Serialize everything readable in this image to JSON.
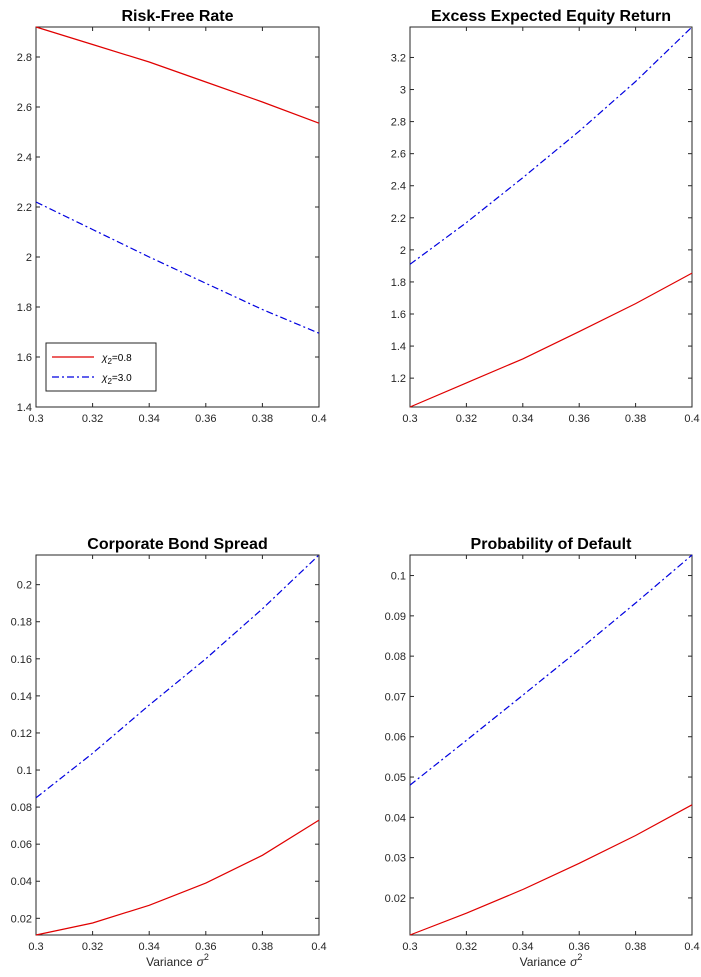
{
  "chart_data": [
    {
      "type": "line",
      "title": "Risk-Free Rate",
      "xlabel": "",
      "ylabel": "",
      "xlim": [
        0.3,
        0.4
      ],
      "ylim": [
        1.4,
        2.92
      ],
      "xticks": [
        0.3,
        0.32,
        0.34,
        0.36,
        0.38,
        0.4
      ],
      "xtick_labels": [
        "0.3",
        "0.32",
        "0.34",
        "0.36",
        "0.38",
        "0.4"
      ],
      "yticks": [
        1.4,
        1.6,
        1.8,
        2.0,
        2.2,
        2.4,
        2.6,
        2.8
      ],
      "ytick_labels": [
        "1.4",
        "1.6",
        "1.8",
        "2",
        "2.2",
        "2.4",
        "2.6",
        "2.8"
      ],
      "legend": {
        "placement": "bottom-left",
        "entries": [
          {
            "label_main": "χ",
            "label_sub": "2",
            "label_tail": "=0.8",
            "color": "#e00000",
            "dash": "solid"
          },
          {
            "label_main": "χ",
            "label_sub": "2",
            "label_tail": "=3.0",
            "color": "#0000e0",
            "dash": "dashdot"
          }
        ]
      },
      "x": [
        0.3,
        0.32,
        0.34,
        0.36,
        0.38,
        0.4
      ],
      "series": [
        {
          "color": "#e00000",
          "dash": "solid",
          "values": [
            2.92,
            2.85,
            2.78,
            2.7,
            2.62,
            2.535
          ]
        },
        {
          "color": "#0000e0",
          "dash": "dashdot",
          "values": [
            2.22,
            2.11,
            2.0,
            1.895,
            1.79,
            1.695
          ]
        }
      ]
    },
    {
      "type": "line",
      "title": "Excess Expected Equity Return",
      "xlabel": "",
      "ylabel": "",
      "xlim": [
        0.3,
        0.4
      ],
      "ylim": [
        1.02,
        3.39
      ],
      "xticks": [
        0.3,
        0.32,
        0.34,
        0.36,
        0.38,
        0.4
      ],
      "xtick_labels": [
        "0.3",
        "0.32",
        "0.34",
        "0.36",
        "0.38",
        "0.4"
      ],
      "yticks": [
        1.2,
        1.4,
        1.6,
        1.8,
        2.0,
        2.2,
        2.4,
        2.6,
        2.8,
        3.0,
        3.2
      ],
      "ytick_labels": [
        "1.2",
        "1.4",
        "1.6",
        "1.8",
        "2",
        "2.2",
        "2.4",
        "2.6",
        "2.8",
        "3",
        "3.2"
      ],
      "x": [
        0.3,
        0.32,
        0.34,
        0.36,
        0.38,
        0.4
      ],
      "series": [
        {
          "color": "#e00000",
          "dash": "solid",
          "values": [
            1.02,
            1.17,
            1.32,
            1.49,
            1.665,
            1.855
          ]
        },
        {
          "color": "#0000e0",
          "dash": "dashdot",
          "values": [
            1.91,
            2.17,
            2.45,
            2.74,
            3.05,
            3.39
          ]
        }
      ]
    },
    {
      "type": "line",
      "title": "Corporate Bond Spread",
      "xlabel": "Variance",
      "xlabel_symbol": "σ",
      "xlabel_sup": "2",
      "ylabel": "",
      "xlim": [
        0.3,
        0.4
      ],
      "ylim": [
        0.011,
        0.216
      ],
      "xticks": [
        0.3,
        0.32,
        0.34,
        0.36,
        0.38,
        0.4
      ],
      "xtick_labels": [
        "0.3",
        "0.32",
        "0.34",
        "0.36",
        "0.38",
        "0.4"
      ],
      "yticks": [
        0.02,
        0.04,
        0.06,
        0.08,
        0.1,
        0.12,
        0.14,
        0.16,
        0.18,
        0.2
      ],
      "ytick_labels": [
        "0.02",
        "0.04",
        "0.06",
        "0.08",
        "0.1",
        "0.12",
        "0.14",
        "0.16",
        "0.18",
        "0.2"
      ],
      "x": [
        0.3,
        0.32,
        0.34,
        0.36,
        0.38,
        0.4
      ],
      "series": [
        {
          "color": "#e00000",
          "dash": "solid",
          "values": [
            0.011,
            0.0175,
            0.027,
            0.039,
            0.054,
            0.073
          ]
        },
        {
          "color": "#0000e0",
          "dash": "dashdot",
          "values": [
            0.085,
            0.109,
            0.135,
            0.16,
            0.187,
            0.216
          ]
        }
      ]
    },
    {
      "type": "line",
      "title": "Probability of Default",
      "xlabel": "Variance",
      "xlabel_symbol": "σ",
      "xlabel_sup": "2",
      "ylabel": "",
      "xlim": [
        0.3,
        0.4
      ],
      "ylim": [
        0.0108,
        0.1051
      ],
      "xticks": [
        0.3,
        0.32,
        0.34,
        0.36,
        0.38,
        0.4
      ],
      "xtick_labels": [
        "0.3",
        "0.32",
        "0.34",
        "0.36",
        "0.38",
        "0.4"
      ],
      "yticks": [
        0.02,
        0.03,
        0.04,
        0.05,
        0.06,
        0.07,
        0.08,
        0.09,
        0.1
      ],
      "ytick_labels": [
        "0.02",
        "0.03",
        "0.04",
        "0.05",
        "0.06",
        "0.07",
        "0.08",
        "0.09",
        "0.1"
      ],
      "x": [
        0.3,
        0.32,
        0.34,
        0.36,
        0.38,
        0.4
      ],
      "series": [
        {
          "color": "#e00000",
          "dash": "solid",
          "values": [
            0.0108,
            0.0162,
            0.0221,
            0.0286,
            0.0355,
            0.0431
          ]
        },
        {
          "color": "#0000e0",
          "dash": "dashdot",
          "values": [
            0.048,
            0.0591,
            0.0703,
            0.0816,
            0.0932,
            0.1051
          ]
        }
      ]
    }
  ]
}
